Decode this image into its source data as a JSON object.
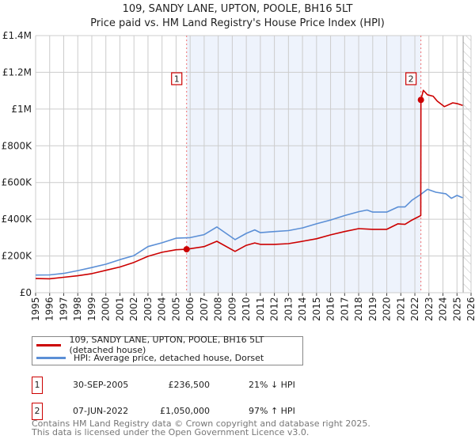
{
  "header": {
    "title": "109, SANDY LANE, UPTON, POOLE, BH16 5LT",
    "subtitle": "Price paid vs. HM Land Registry's House Price Index (HPI)"
  },
  "colors": {
    "property": "#cc0000",
    "hpi": "#5b8fd6",
    "shade": "#eef3fc",
    "grid": "#cccccc"
  },
  "chart_data": {
    "type": "line",
    "title": "109, SANDY LANE, UPTON, POOLE, BH16 5LT",
    "xlim": [
      1995,
      2026
    ],
    "ylim": [
      0,
      1400000
    ],
    "grid": true,
    "y_ticks": [
      {
        "value": 0,
        "label": "£0"
      },
      {
        "value": 200000,
        "label": "£200K"
      },
      {
        "value": 400000,
        "label": "£400K"
      },
      {
        "value": 600000,
        "label": "£600K"
      },
      {
        "value": 800000,
        "label": "£800K"
      },
      {
        "value": 1000000,
        "label": "£1M"
      },
      {
        "value": 1200000,
        "label": "£1.2M"
      },
      {
        "value": 1400000,
        "label": "£1.4M"
      }
    ],
    "x_ticks": [
      "1995",
      "1996",
      "1997",
      "1998",
      "1999",
      "2000",
      "2001",
      "2002",
      "2003",
      "2004",
      "2005",
      "2006",
      "2007",
      "2008",
      "2009",
      "2010",
      "2011",
      "2012",
      "2013",
      "2014",
      "2015",
      "2016",
      "2017",
      "2018",
      "2019",
      "2020",
      "2021",
      "2022",
      "2023",
      "2024",
      "2025",
      "2026"
    ],
    "shaded_range": [
      2005.75,
      2022.43
    ],
    "forecast_hatch_from": 2025.44,
    "series": [
      {
        "name": "109, SANDY LANE, UPTON, POOLE, BH16 5LT (detached house)",
        "color": "#cc0000",
        "x": [
          1995,
          1996,
          1997,
          1998,
          1999,
          2000,
          2001,
          2002,
          2003,
          2004,
          2005,
          2005.75,
          2007,
          2007.9,
          2009.2,
          2010,
          2010.6,
          2011,
          2012,
          2013,
          2014,
          2015,
          2016,
          2017,
          2018,
          2019,
          2020,
          2020.8,
          2021.3,
          2021.8,
          2022.42,
          2022.43,
          2022.6,
          2022.9,
          2023.3,
          2023.6,
          2024.1,
          2024.7,
          2025.0,
          2025.4
        ],
        "y": [
          77000,
          76000,
          84000,
          92000,
          104000,
          122000,
          140000,
          165000,
          198000,
          220000,
          234000,
          236500,
          251000,
          280000,
          225000,
          258000,
          271000,
          263000,
          263000,
          267000,
          280000,
          294000,
          315000,
          333000,
          349000,
          345000,
          345000,
          375000,
          372000,
          396000,
          420000,
          1050000,
          1102000,
          1078000,
          1070000,
          1043000,
          1013000,
          1034000,
          1030000,
          1020000
        ]
      },
      {
        "name": "HPI: Average price, detached house, Dorset",
        "color": "#5b8fd6",
        "x": [
          1995,
          1996,
          1997,
          1998,
          1999,
          2000,
          2001,
          2002,
          2003,
          2004,
          2005,
          2006,
          2007,
          2007.9,
          2009.2,
          2010,
          2010.6,
          2011,
          2012,
          2013,
          2014,
          2015,
          2016,
          2017,
          2018,
          2018.6,
          2019,
          2020,
          2020.8,
          2021.3,
          2021.8,
          2022.4,
          2022.9,
          2023.5,
          2024.2,
          2024.6,
          2025,
          2025.4
        ],
        "y": [
          96000,
          97000,
          105000,
          120000,
          137000,
          155000,
          180000,
          202000,
          251000,
          272000,
          297000,
          300000,
          316000,
          358000,
          289000,
          323000,
          342000,
          327000,
          333000,
          338000,
          353000,
          375000,
          396000,
          420000,
          441000,
          450000,
          439000,
          439000,
          467000,
          467000,
          504000,
          534000,
          563000,
          547000,
          539000,
          514000,
          530000,
          517000
        ]
      }
    ],
    "annotations": [
      {
        "label": "1",
        "x": 2005.75,
        "y": 236500
      },
      {
        "label": "2",
        "x": 2022.43,
        "y": 1050000
      }
    ]
  },
  "legend": {
    "items": [
      {
        "label": "109, SANDY LANE, UPTON, POOLE, BH16 5LT (detached house)"
      },
      {
        "label": "HPI: Average price, detached house, Dorset"
      }
    ]
  },
  "transactions": [
    {
      "num": "1",
      "date": "30-SEP-2005",
      "price": "£236,500",
      "hpi": "21% ↓ HPI"
    },
    {
      "num": "2",
      "date": "07-JUN-2022",
      "price": "£1,050,000",
      "hpi": "97% ↑ HPI"
    }
  ],
  "footer": {
    "line1": "Contains HM Land Registry data © Crown copyright and database right 2025.",
    "line2": "This data is licensed under the Open Government Licence v3.0."
  }
}
